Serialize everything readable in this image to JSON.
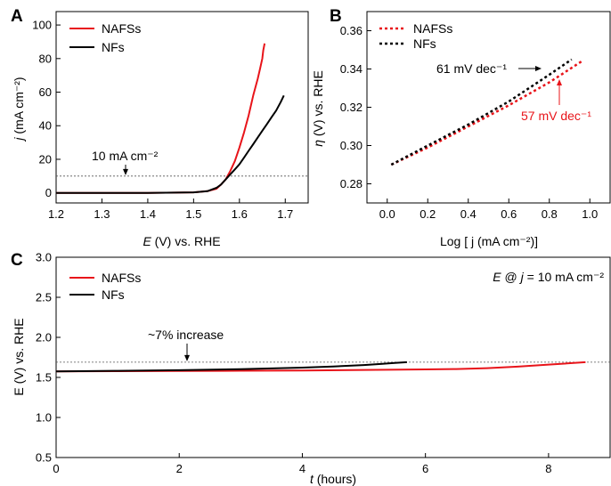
{
  "colors": {
    "nafss": "#e8141a",
    "nfs": "#000000",
    "ref": "#555555"
  },
  "chart_data": [
    {
      "panel": "A",
      "type": "line",
      "xlabel_italic": "E",
      "xlabel_rest": " (V) vs. RHE",
      "ylabel_italic": "j",
      "ylabel_rest": " (mA cm⁻²)",
      "xlim": [
        1.2,
        1.75
      ],
      "ylim": [
        -6,
        108
      ],
      "xticks": [
        "1.2",
        "1.3",
        "1.4",
        "1.5",
        "1.6",
        "1.7"
      ],
      "yticks": [
        "0",
        "20",
        "40",
        "60",
        "80",
        "100"
      ],
      "legend_position": "top-left",
      "reference_line": {
        "y": 10,
        "label": "10 mA cm⁻²"
      },
      "series": [
        {
          "name": "NAFSs",
          "color": "#e8141a",
          "x": [
            1.2,
            1.4,
            1.5,
            1.53,
            1.55,
            1.56,
            1.57,
            1.58,
            1.59,
            1.6,
            1.61,
            1.62,
            1.63,
            1.64,
            1.645,
            1.65,
            1.652,
            1.655
          ],
          "y": [
            0,
            0,
            0.3,
            1,
            2.5,
            5,
            8,
            13,
            19,
            27,
            36,
            46,
            58,
            68,
            74,
            80,
            85,
            89
          ]
        },
        {
          "name": "NFs",
          "color": "#000000",
          "x": [
            1.2,
            1.4,
            1.5,
            1.53,
            1.55,
            1.56,
            1.57,
            1.58,
            1.59,
            1.6,
            1.61,
            1.62,
            1.63,
            1.64,
            1.65,
            1.66,
            1.67,
            1.68,
            1.69,
            1.697
          ],
          "y": [
            0,
            0,
            0.3,
            1,
            3,
            5,
            8,
            11,
            14,
            17,
            21,
            25,
            29,
            33,
            37,
            41,
            45,
            49,
            54,
            58
          ]
        }
      ]
    },
    {
      "panel": "B",
      "type": "line",
      "xlabel": "Log [ j (mA cm⁻²)]",
      "ylabel_italic": "η",
      "ylabel_rest": " (V) vs. RHE",
      "xlim": [
        -0.1,
        1.1
      ],
      "ylim": [
        0.27,
        0.37
      ],
      "xticks": [
        "0.0",
        "0.2",
        "0.4",
        "0.6",
        "0.8",
        "1.0"
      ],
      "yticks": [
        "0.28",
        "0.30",
        "0.32",
        "0.34",
        "0.36"
      ],
      "legend_position": "top-left",
      "series": [
        {
          "name": "NAFSs",
          "color": "#e8141a",
          "dashed": true,
          "x": [
            0.02,
            0.2,
            0.4,
            0.6,
            0.8,
            0.96
          ],
          "y": [
            0.29,
            0.299,
            0.31,
            0.321,
            0.333,
            0.344
          ]
        },
        {
          "name": "NFs",
          "color": "#000000",
          "dashed": true,
          "x": [
            0.02,
            0.2,
            0.4,
            0.6,
            0.8,
            0.91
          ],
          "y": [
            0.29,
            0.3,
            0.311,
            0.323,
            0.337,
            0.345
          ]
        }
      ],
      "annotations": [
        {
          "text": "61 mV dec⁻¹",
          "color": "#000000"
        },
        {
          "text": "57 mV dec⁻¹",
          "color": "#e8141a"
        }
      ]
    },
    {
      "panel": "C",
      "type": "line",
      "xlabel_italic": "t",
      "xlabel_rest": " (hours)",
      "ylabel": "E (V) vs. RHE",
      "xlim": [
        0,
        9
      ],
      "ylim": [
        0.5,
        3.0
      ],
      "xticks": [
        "0",
        "2",
        "4",
        "6",
        "8"
      ],
      "yticks": [
        "0.5",
        "1.0",
        "1.5",
        "2.0",
        "2.5",
        "3.0"
      ],
      "legend_position": "top-left",
      "condition_label": "E @ j = 10 mA cm⁻²",
      "reference_line": {
        "y": 1.69,
        "label": "~7% increase"
      },
      "series": [
        {
          "name": "NAFSs",
          "color": "#e8141a",
          "x": [
            0,
            1,
            2,
            3,
            4,
            5,
            6,
            6.5,
            7,
            7.5,
            8,
            8.3,
            8.6
          ],
          "y": [
            1.575,
            1.578,
            1.58,
            1.583,
            1.587,
            1.593,
            1.6,
            1.605,
            1.615,
            1.635,
            1.66,
            1.675,
            1.69
          ]
        },
        {
          "name": "NFs",
          "color": "#000000",
          "x": [
            0,
            1,
            2,
            3,
            4,
            4.5,
            5,
            5.3,
            5.5,
            5.7
          ],
          "y": [
            1.575,
            1.582,
            1.59,
            1.603,
            1.622,
            1.637,
            1.655,
            1.67,
            1.68,
            1.69
          ]
        }
      ]
    }
  ],
  "panels": {
    "a": "A",
    "b": "B",
    "c": "C"
  },
  "conditionParts": {
    "E": "E",
    "at": " @ ",
    "j": "j",
    "rest": " = 10 mA cm⁻²"
  }
}
